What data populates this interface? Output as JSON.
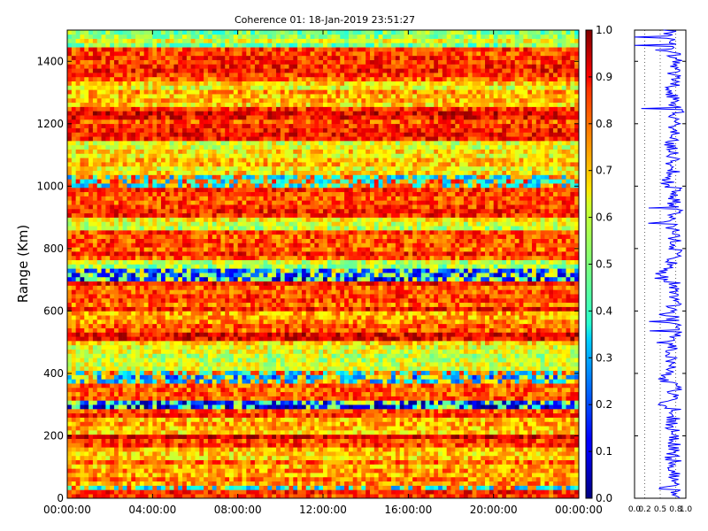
{
  "chart_data": [
    {
      "type": "heatmap",
      "title": "Coherence 01: 18-Jan-2019 23:51:27",
      "xlabel": "",
      "ylabel": "Range (Km)",
      "x_ticks": [
        "00:00:00",
        "04:00:00",
        "08:00:00",
        "12:00:00",
        "16:00:00",
        "20:00:00",
        "00:00:00"
      ],
      "y_ticks": [
        0,
        200,
        400,
        600,
        800,
        1000,
        1200,
        1400
      ],
      "ylim": [
        0,
        1500
      ],
      "xlim_hours": [
        0,
        24
      ],
      "colorbar": {
        "colormap": "jet",
        "range": [
          0.0,
          1.0
        ],
        "tick_labels": [
          "0.0",
          "0.1",
          "0.2",
          "0.3",
          "0.4",
          "0.5",
          "0.6",
          "0.7",
          "0.8",
          "0.9",
          "1.0"
        ]
      },
      "range_profiles": [
        {
          "range_km": [
            0,
            30
          ],
          "mean_coherence": 0.8
        },
        {
          "range_km": [
            30,
            45
          ],
          "mean_coherence": 0.33
        },
        {
          "range_km": [
            45,
            110
          ],
          "mean_coherence": 0.7
        },
        {
          "range_km": [
            110,
            120
          ],
          "mean_coherence": 0.82
        },
        {
          "range_km": [
            120,
            170
          ],
          "mean_coherence": 0.68
        },
        {
          "range_km": [
            170,
            210
          ],
          "mean_coherence": 0.86
        },
        {
          "range_km": [
            210,
            260
          ],
          "mean_coherence": 0.66
        },
        {
          "range_km": [
            260,
            290
          ],
          "mean_coherence": 0.84
        },
        {
          "range_km": [
            290,
            320
          ],
          "mean_coherence": 0.12
        },
        {
          "range_km": [
            320,
            370
          ],
          "mean_coherence": 0.76
        },
        {
          "range_km": [
            370,
            410
          ],
          "mean_coherence": 0.3
        },
        {
          "range_km": [
            410,
            500
          ],
          "mean_coherence": 0.62
        },
        {
          "range_km": [
            500,
            560
          ],
          "mean_coherence": 0.84
        },
        {
          "range_km": [
            560,
            600
          ],
          "mean_coherence": 0.7
        },
        {
          "range_km": [
            600,
            700
          ],
          "mean_coherence": 0.82
        },
        {
          "range_km": [
            700,
            730
          ],
          "mean_coherence": 0.15
        },
        {
          "range_km": [
            730,
            760
          ],
          "mean_coherence": 0.55
        },
        {
          "range_km": [
            760,
            860
          ],
          "mean_coherence": 0.82
        },
        {
          "range_km": [
            860,
            900
          ],
          "mean_coherence": 0.6
        },
        {
          "range_km": [
            900,
            1000
          ],
          "mean_coherence": 0.84
        },
        {
          "range_km": [
            1000,
            1040
          ],
          "mean_coherence": 0.35
        },
        {
          "range_km": [
            1040,
            1150
          ],
          "mean_coherence": 0.65
        },
        {
          "range_km": [
            1150,
            1260
          ],
          "mean_coherence": 0.86
        },
        {
          "range_km": [
            1260,
            1340
          ],
          "mean_coherence": 0.66
        },
        {
          "range_km": [
            1340,
            1450
          ],
          "mean_coherence": 0.82
        },
        {
          "range_km": [
            1450,
            1500
          ],
          "mean_coherence": 0.55
        }
      ]
    },
    {
      "type": "line",
      "title": "",
      "xlabel": "",
      "ylabel": "",
      "xlim": [
        0.0,
        1.0
      ],
      "ylim": [
        0,
        1500
      ],
      "x_tick_labels": [
        "0.0",
        "0.2",
        "0.5",
        "0.8",
        "1.0"
      ],
      "description_value": "mean coherence vs range"
    }
  ]
}
